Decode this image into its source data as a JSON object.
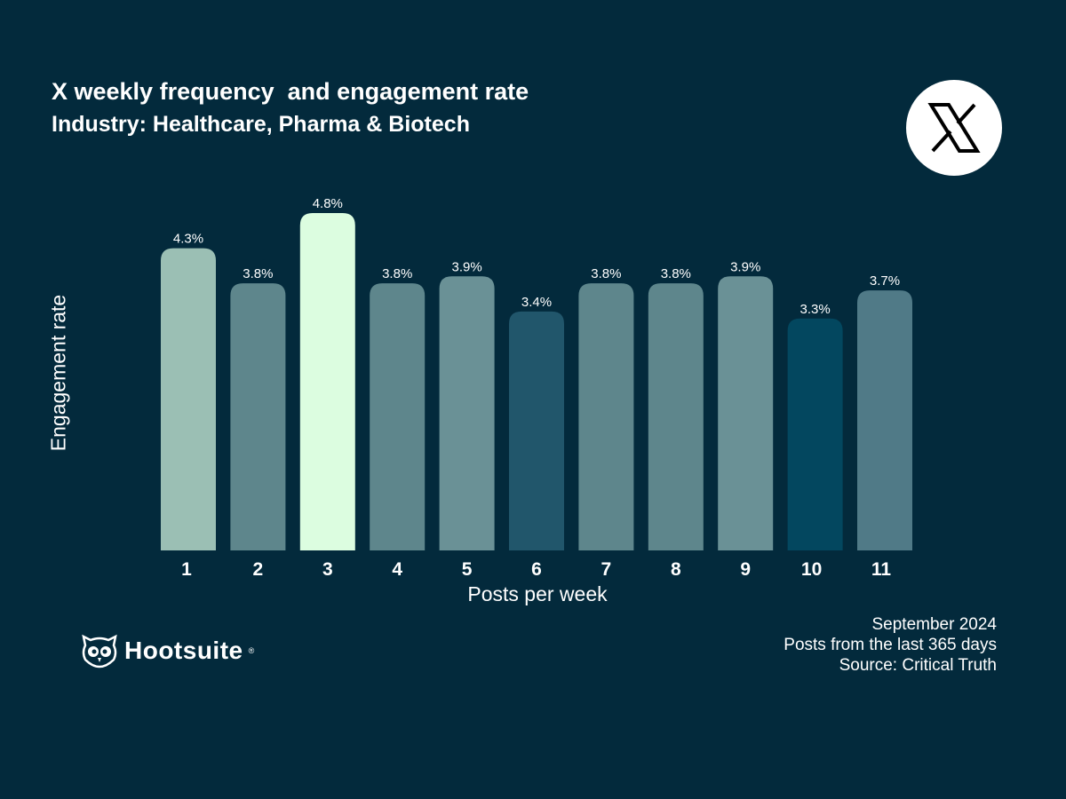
{
  "title": "X weekly frequency  and engagement rate",
  "subtitle": "Industry: Healthcare, Pharma & Biotech",
  "brand": "Hootsuite",
  "footer": [
    "September 2024",
    "Posts from the last 365 days",
    "Source: Critical Truth"
  ],
  "chart_data": {
    "type": "bar",
    "xlabel": "Posts per week",
    "ylabel": "Engagement rate",
    "categories": [
      "1",
      "2",
      "3",
      "4",
      "5",
      "6",
      "7",
      "8",
      "9",
      "10",
      "11"
    ],
    "values": [
      4.3,
      3.8,
      4.8,
      3.8,
      3.9,
      3.4,
      3.8,
      3.8,
      3.9,
      3.3,
      3.7
    ],
    "labels": [
      "4.3%",
      "3.8%",
      "4.8%",
      "3.8%",
      "3.9%",
      "3.4%",
      "3.8%",
      "3.8%",
      "3.9%",
      "3.3%",
      "3.7%"
    ],
    "colors": [
      "#9bbfb4",
      "#5e868c",
      "#dcfde0",
      "#5e868c",
      "#6a9196",
      "#21566b",
      "#5e868c",
      "#5e868c",
      "#6a9196",
      "#03475f",
      "#507a87"
    ],
    "ylim": [
      0,
      4.8
    ],
    "grid": false,
    "background": "#032a3c"
  }
}
